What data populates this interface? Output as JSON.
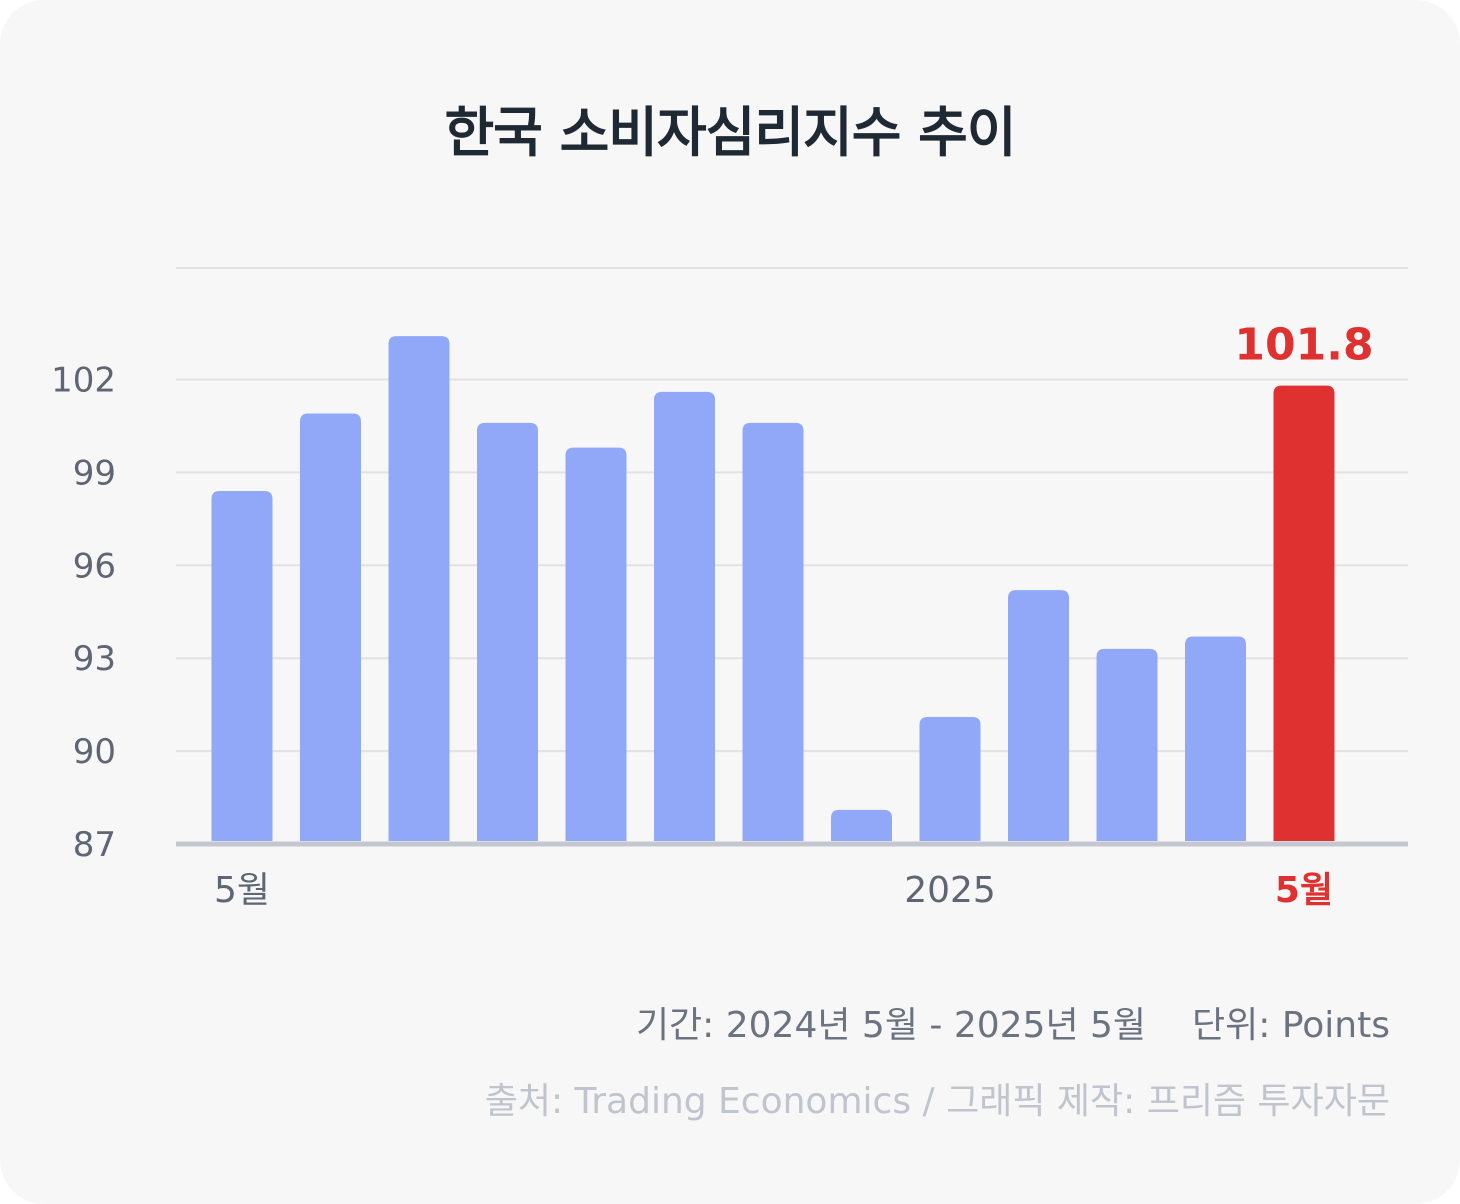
{
  "chart_data": {
    "type": "bar",
    "title": "한국 소비자심리지수 추이",
    "categories": [
      "5월",
      "",
      "",
      "",
      "",
      "",
      "",
      "",
      "2025",
      "",
      "",
      "",
      "5월"
    ],
    "values": [
      98.4,
      100.9,
      103.4,
      100.6,
      99.8,
      101.6,
      100.6,
      88.1,
      91.1,
      95.2,
      93.3,
      93.7,
      101.8
    ],
    "highlight_index": 12,
    "highlight_label": "101.8",
    "yticks": [
      87,
      90,
      93,
      96,
      99,
      102
    ],
    "ylim": [
      87,
      105.6
    ],
    "grid": true,
    "colors": {
      "bar": "#91a8f9",
      "highlight": "#e03131",
      "grid": "#e2e2e2",
      "axis": "#c4c7d0"
    }
  },
  "footer": {
    "period": "기간: 2024년 5월 - 2025년 5월",
    "unit": "단위: Points",
    "source": "출처: Trading Economics / 그래픽 제작: 프리즘 투자자문"
  }
}
